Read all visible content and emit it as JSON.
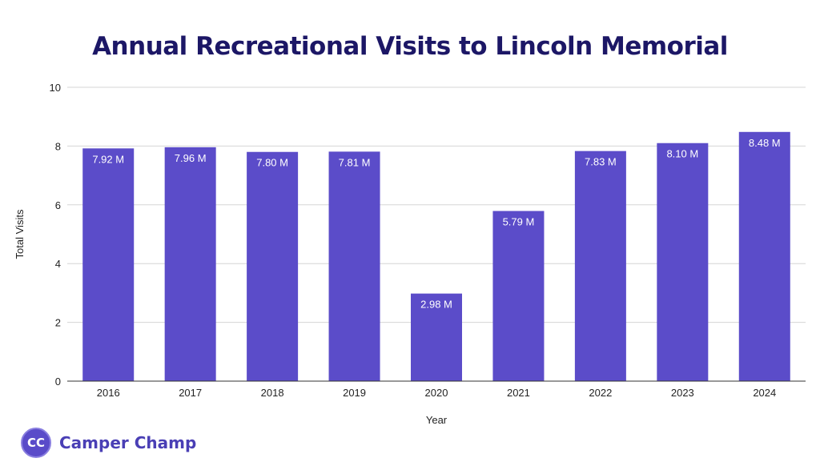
{
  "chart_data": {
    "type": "bar",
    "title": "Annual Recreational Visits to Lincoln Memorial",
    "xlabel": "Year",
    "ylabel": "Total Visits",
    "categories": [
      "2016",
      "2017",
      "2018",
      "2019",
      "2020",
      "2021",
      "2022",
      "2023",
      "2024"
    ],
    "values": [
      7.92,
      7.96,
      7.8,
      7.81,
      2.98,
      5.79,
      7.83,
      8.1,
      8.48
    ],
    "data_labels": [
      "7.92 M",
      "7.96 M",
      "7.80 M",
      "7.81 M",
      "2.98 M",
      "5.79 M",
      "7.83 M",
      "8.10 M",
      "8.48 M"
    ],
    "ylim": [
      0,
      10
    ],
    "yticks": [
      "0",
      "2",
      "4",
      "6",
      "8",
      "10"
    ],
    "grid": true,
    "legend": "none",
    "bar_color": "#5b4cc9"
  },
  "branding": {
    "logo_initials": "CC",
    "logo_text": "Camper Champ",
    "accent": "#4a3fb5"
  }
}
